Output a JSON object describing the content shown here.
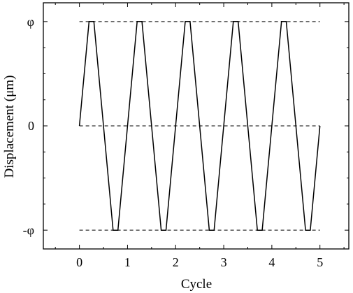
{
  "chart_data": {
    "type": "line",
    "title": "",
    "xlabel": "Cycle",
    "ylabel": "Displacement (μm)",
    "xlim": [
      -0.75,
      5.6
    ],
    "ylim": [
      -1.18,
      1.18
    ],
    "x_ticks": [
      0,
      1,
      2,
      3,
      4,
      5
    ],
    "y_ticks": [
      {
        "value": 1,
        "label": "φ"
      },
      {
        "value": 0,
        "label": "0"
      },
      {
        "value": -1,
        "label": "-φ"
      }
    ],
    "grid": false,
    "reference_lines": [
      {
        "y": 1,
        "x_range": [
          0,
          5
        ],
        "style": "dashed"
      },
      {
        "y": 0,
        "x_range": [
          0,
          5
        ],
        "style": "dashed"
      },
      {
        "y": -1,
        "x_range": [
          0,
          5
        ],
        "style": "dashed"
      }
    ],
    "series": [
      {
        "x": [
          0,
          0.2,
          0.3,
          0.7,
          0.8,
          1.2,
          1.3,
          1.7,
          1.8,
          2.2,
          2.3,
          2.7,
          2.8,
          3.2,
          3.3,
          3.7,
          3.8,
          4.2,
          4.3,
          4.7,
          4.8,
          5.0
        ],
        "y": [
          0,
          1,
          1,
          -1,
          -1,
          1,
          1,
          -1,
          -1,
          1,
          1,
          -1,
          -1,
          1,
          1,
          -1,
          -1,
          1,
          1,
          -1,
          -1,
          0
        ]
      }
    ]
  }
}
